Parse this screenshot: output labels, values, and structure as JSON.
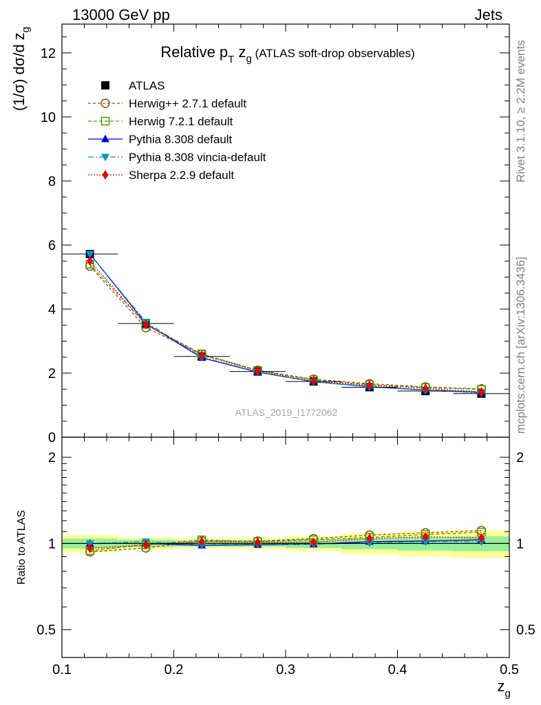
{
  "header": {
    "left": "13000 GeV pp",
    "right": "Jets"
  },
  "side": {
    "rivet": "Rivet 3.1.10, ≥ 2.2M events",
    "mcplots": "mcplots.cern.ch [arXiv:1306.3436]"
  },
  "chart_data": [
    {
      "id": "main",
      "type": "line",
      "title_main": "Relative p",
      "title_sub1": "T",
      "title_mid": " z",
      "title_sub2": "g",
      "title_suffix": " (ATLAS soft-drop observables)",
      "ylabel_main": "(1/σ) dσ/d z",
      "ylabel_sub": "g",
      "watermark": "ATLAS_2019_I1772062",
      "xlim": [
        0.1,
        0.5
      ],
      "ylim": [
        0,
        12.9
      ],
      "yticks": [
        {
          "v": 0,
          "label": "0"
        },
        {
          "v": 2,
          "label": "2"
        },
        {
          "v": 4,
          "label": "4"
        },
        {
          "v": 6,
          "label": "6"
        },
        {
          "v": 8,
          "label": "8"
        },
        {
          "v": 10,
          "label": "10"
        },
        {
          "v": 12,
          "label": "12"
        }
      ],
      "x": [
        0.125,
        0.175,
        0.225,
        0.275,
        0.325,
        0.375,
        0.425,
        0.475
      ],
      "data": {
        "name": "ATLAS",
        "values": [
          5.72,
          3.55,
          2.52,
          2.05,
          1.74,
          1.56,
          1.44,
          1.36
        ]
      },
      "series": [
        {
          "name": "Herwig++ 2.7.1 default",
          "color": "#994c00",
          "dash": "4,3",
          "marker": "circle-open",
          "values": [
            5.34,
            3.42,
            2.59,
            2.09,
            1.81,
            1.67,
            1.57,
            1.51
          ]
        },
        {
          "name": "Herwig 7.2.1 default",
          "color": "#4c9900",
          "dash": "5,3",
          "marker": "square-open",
          "values": [
            5.4,
            3.52,
            2.6,
            2.08,
            1.79,
            1.64,
            1.55,
            1.49
          ]
        },
        {
          "name": "Pythia 8.308 default",
          "color": "#0000dd",
          "dash": "",
          "marker": "triangle-up",
          "values": [
            5.72,
            3.55,
            2.48,
            2.03,
            1.73,
            1.58,
            1.47,
            1.4
          ]
        },
        {
          "name": "Pythia 8.308 vincia-default",
          "color": "#0099bb",
          "dash": "8,3,2,3",
          "marker": "triangle-down",
          "values": [
            5.72,
            3.6,
            2.5,
            2.04,
            1.73,
            1.57,
            1.46,
            1.38
          ]
        },
        {
          "name": "Sherpa 2.2.9 default",
          "color": "#ee0000",
          "dash": "2,2",
          "marker": "diamond",
          "values": [
            5.5,
            3.52,
            2.56,
            2.07,
            1.76,
            1.62,
            1.52,
            1.42
          ]
        }
      ]
    },
    {
      "id": "ratio",
      "type": "line",
      "ylabel": "Ratio to ATLAS",
      "xlabel_main": "z",
      "xlabel_sub": "g",
      "yscale": "log",
      "ylim": [
        0.4,
        2.35
      ],
      "yticks": [
        {
          "v": 0.5,
          "label": "0.5"
        },
        {
          "v": 1,
          "label": "1"
        },
        {
          "v": 2,
          "label": "2"
        }
      ],
      "xticks": [
        {
          "v": 0.1,
          "label": "0.1"
        },
        {
          "v": 0.2,
          "label": "0.2"
        },
        {
          "v": 0.3,
          "label": "0.3"
        },
        {
          "v": 0.4,
          "label": "0.4"
        },
        {
          "v": 0.5,
          "label": "0.5"
        }
      ],
      "bins": [
        [
          0.1,
          0.15
        ],
        [
          0.15,
          0.2
        ],
        [
          0.2,
          0.25
        ],
        [
          0.25,
          0.3
        ],
        [
          0.3,
          0.35
        ],
        [
          0.35,
          0.4
        ],
        [
          0.4,
          0.45
        ],
        [
          0.45,
          0.5
        ]
      ],
      "band_inner": [
        0.04,
        0.03,
        0.025,
        0.025,
        0.035,
        0.045,
        0.055,
        0.06
      ],
      "band_outer": [
        0.07,
        0.05,
        0.04,
        0.045,
        0.06,
        0.085,
        0.1,
        0.11
      ],
      "series": [
        {
          "name": "Herwig++ 2.7.1 default",
          "values": [
            0.935,
            0.965,
            1.02,
            1.02,
            1.04,
            1.07,
            1.09,
            1.11
          ]
        },
        {
          "name": "Herwig 7.2.1 default",
          "values": [
            0.944,
            0.99,
            1.03,
            1.015,
            1.03,
            1.05,
            1.075,
            1.095
          ]
        },
        {
          "name": "Pythia 8.308 default",
          "values": [
            1.0,
            1.0,
            0.985,
            0.99,
            0.995,
            1.015,
            1.02,
            1.03
          ]
        },
        {
          "name": "Pythia 8.308 vincia-default",
          "values": [
            1.0,
            1.015,
            0.99,
            0.995,
            0.995,
            1.005,
            1.015,
            1.015
          ]
        },
        {
          "name": "Sherpa 2.2.9 default",
          "values": [
            0.962,
            0.99,
            1.015,
            1.01,
            1.01,
            1.04,
            1.055,
            1.045
          ]
        }
      ]
    }
  ]
}
